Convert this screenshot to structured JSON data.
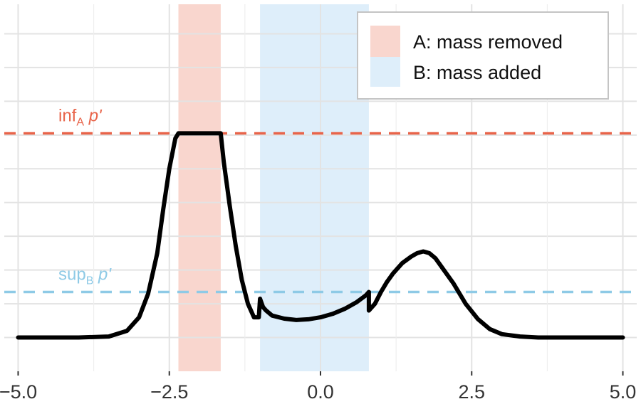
{
  "chart_data": {
    "type": "line",
    "title": "",
    "xlabel": "",
    "ylabel": "",
    "xlim": [
      -5.3,
      5.3
    ],
    "ylim": [
      -0.1,
      1.0
    ],
    "x_ticks": [
      "-5.0",
      "-2.5",
      "0.0",
      "2.5",
      "5.0"
    ],
    "x_tick_values": [
      -5.0,
      -2.5,
      0.0,
      2.5,
      5.0
    ],
    "grid": true,
    "legend_placement": "top-right",
    "regions": [
      {
        "name": "A: mass removed",
        "x0": -2.35,
        "x1": -1.65,
        "color": "#f9d6ce"
      },
      {
        "name": "B: mass added",
        "x0": -1.0,
        "x1": 0.8,
        "color": "#deeefa"
      }
    ],
    "reference_lines": [
      {
        "name": "inf_A p'",
        "label_main": "inf",
        "label_sub": "A",
        "label_var": "p'",
        "y": 0.605,
        "color": "#e8644a"
      },
      {
        "name": "sup_B p'",
        "label_main": "sup",
        "label_sub": "B",
        "label_var": "p'",
        "y": 0.135,
        "color": "#8ecae6"
      }
    ],
    "series": [
      {
        "color": "#000000",
        "x": [
          -5.0,
          -4.0,
          -3.5,
          -3.2,
          -3.0,
          -2.85,
          -2.7,
          -2.6,
          -2.5,
          -2.4,
          -2.35,
          -1.65,
          -1.6,
          -1.5,
          -1.4,
          -1.3,
          -1.2,
          -1.1,
          -1.02,
          -1.0,
          -0.95,
          -0.9,
          -0.8,
          -0.6,
          -0.4,
          -0.2,
          0.0,
          0.2,
          0.4,
          0.6,
          0.75,
          0.8,
          0.8,
          0.9,
          1.0,
          1.1,
          1.2,
          1.35,
          1.5,
          1.6,
          1.7,
          1.8,
          1.9,
          2.0,
          2.2,
          2.4,
          2.6,
          2.8,
          3.0,
          3.3,
          3.6,
          4.0,
          5.0
        ],
        "y": [
          0.0,
          0.0,
          0.003,
          0.02,
          0.06,
          0.13,
          0.25,
          0.38,
          0.5,
          0.59,
          0.605,
          0.605,
          0.52,
          0.39,
          0.27,
          0.17,
          0.1,
          0.06,
          0.06,
          0.115,
          0.09,
          0.08,
          0.065,
          0.056,
          0.052,
          0.054,
          0.06,
          0.07,
          0.085,
          0.105,
          0.125,
          0.135,
          0.08,
          0.1,
          0.135,
          0.165,
          0.19,
          0.22,
          0.24,
          0.25,
          0.255,
          0.25,
          0.235,
          0.21,
          0.16,
          0.1,
          0.055,
          0.025,
          0.01,
          0.003,
          0.0,
          0.0,
          0.0
        ]
      }
    ]
  }
}
